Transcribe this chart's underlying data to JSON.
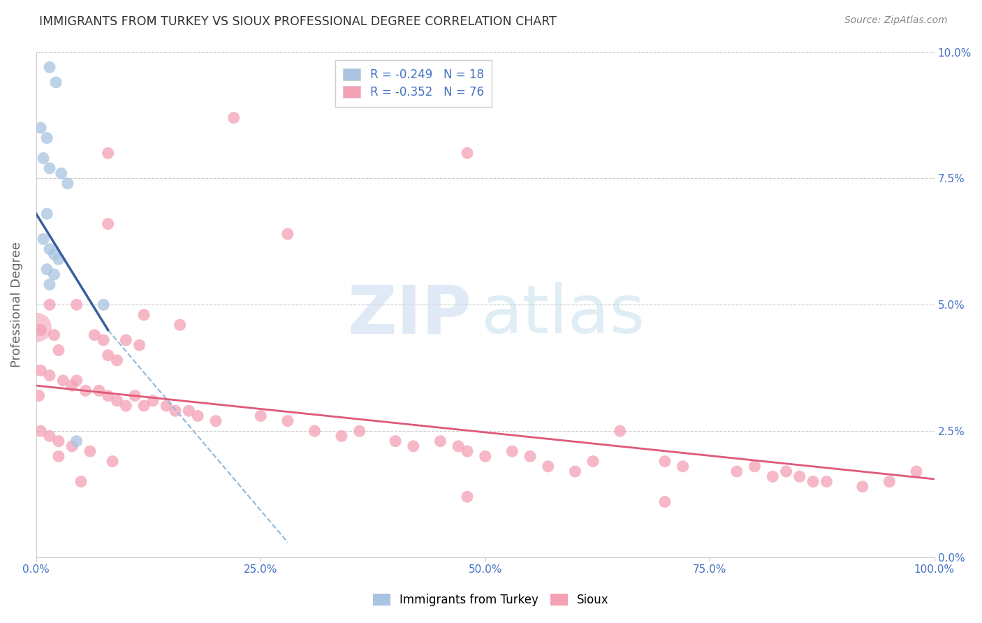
{
  "title": "IMMIGRANTS FROM TURKEY VS SIOUX PROFESSIONAL DEGREE CORRELATION CHART",
  "source": "Source: ZipAtlas.com",
  "ylabel": "Professional Degree",
  "legend_blue_r": "R = -0.249",
  "legend_blue_n": "N = 18",
  "legend_pink_r": "R = -0.352",
  "legend_pink_n": "N = 76",
  "legend_label_blue": "Immigrants from Turkey",
  "legend_label_pink": "Sioux",
  "xlim": [
    0.0,
    100.0
  ],
  "ylim": [
    0.0,
    10.0
  ],
  "yticks": [
    0.0,
    2.5,
    5.0,
    7.5,
    10.0
  ],
  "xticks": [
    0.0,
    25.0,
    50.0,
    75.0,
    100.0
  ],
  "blue_color": "#a8c4e0",
  "pink_color": "#f4a0b5",
  "blue_line_color": "#3a5fa0",
  "pink_line_color": "#e05878",
  "dashed_line_color": "#90b8d8",
  "blue_scatter": [
    [
      1.5,
      9.7
    ],
    [
      2.2,
      9.4
    ],
    [
      0.5,
      8.5
    ],
    [
      1.2,
      8.3
    ],
    [
      0.8,
      7.9
    ],
    [
      1.5,
      7.7
    ],
    [
      2.8,
      7.6
    ],
    [
      3.5,
      7.4
    ],
    [
      1.2,
      6.8
    ],
    [
      0.8,
      6.3
    ],
    [
      1.5,
      6.1
    ],
    [
      2.0,
      6.0
    ],
    [
      2.5,
      5.9
    ],
    [
      1.2,
      5.7
    ],
    [
      2.0,
      5.6
    ],
    [
      1.5,
      5.4
    ],
    [
      7.5,
      5.0
    ],
    [
      4.5,
      2.3
    ]
  ],
  "pink_scatter": [
    [
      22.0,
      8.7
    ],
    [
      8.0,
      8.0
    ],
    [
      48.0,
      8.0
    ],
    [
      8.0,
      6.6
    ],
    [
      28.0,
      6.4
    ],
    [
      1.5,
      5.0
    ],
    [
      4.5,
      5.0
    ],
    [
      12.0,
      4.8
    ],
    [
      16.0,
      4.6
    ],
    [
      0.5,
      4.5
    ],
    [
      2.0,
      4.4
    ],
    [
      6.5,
      4.4
    ],
    [
      7.5,
      4.3
    ],
    [
      10.0,
      4.3
    ],
    [
      11.5,
      4.2
    ],
    [
      2.5,
      4.1
    ],
    [
      8.0,
      4.0
    ],
    [
      9.0,
      3.9
    ],
    [
      0.5,
      3.7
    ],
    [
      1.5,
      3.6
    ],
    [
      3.0,
      3.5
    ],
    [
      4.0,
      3.4
    ],
    [
      4.5,
      3.5
    ],
    [
      5.5,
      3.3
    ],
    [
      7.0,
      3.3
    ],
    [
      8.0,
      3.2
    ],
    [
      9.0,
      3.1
    ],
    [
      10.0,
      3.0
    ],
    [
      11.0,
      3.2
    ],
    [
      12.0,
      3.0
    ],
    [
      13.0,
      3.1
    ],
    [
      14.5,
      3.0
    ],
    [
      15.5,
      2.9
    ],
    [
      17.0,
      2.9
    ],
    [
      18.0,
      2.8
    ],
    [
      20.0,
      2.7
    ],
    [
      25.0,
      2.8
    ],
    [
      28.0,
      2.7
    ],
    [
      31.0,
      2.5
    ],
    [
      34.0,
      2.4
    ],
    [
      36.0,
      2.5
    ],
    [
      40.0,
      2.3
    ],
    [
      42.0,
      2.2
    ],
    [
      45.0,
      2.3
    ],
    [
      47.0,
      2.2
    ],
    [
      48.0,
      2.1
    ],
    [
      50.0,
      2.0
    ],
    [
      53.0,
      2.1
    ],
    [
      55.0,
      2.0
    ],
    [
      57.0,
      1.8
    ],
    [
      60.0,
      1.7
    ],
    [
      62.0,
      1.9
    ],
    [
      65.0,
      2.5
    ],
    [
      70.0,
      1.9
    ],
    [
      72.0,
      1.8
    ],
    [
      78.0,
      1.7
    ],
    [
      80.0,
      1.8
    ],
    [
      82.0,
      1.6
    ],
    [
      83.5,
      1.7
    ],
    [
      85.0,
      1.6
    ],
    [
      86.5,
      1.5
    ],
    [
      88.0,
      1.5
    ],
    [
      92.0,
      1.4
    ],
    [
      95.0,
      1.5
    ],
    [
      98.0,
      1.7
    ],
    [
      0.5,
      2.5
    ],
    [
      1.5,
      2.4
    ],
    [
      2.5,
      2.3
    ],
    [
      4.0,
      2.2
    ],
    [
      6.0,
      2.1
    ],
    [
      8.5,
      1.9
    ],
    [
      0.3,
      3.2
    ],
    [
      2.5,
      2.0
    ],
    [
      5.0,
      1.5
    ],
    [
      48.0,
      1.2
    ],
    [
      70.0,
      1.1
    ]
  ],
  "blue_line": {
    "x0": 0.0,
    "y0": 6.8,
    "x1": 8.0,
    "y1": 4.5
  },
  "dashed_line": {
    "x0": 8.0,
    "y0": 4.5,
    "x1": 28.0,
    "y1": 0.3
  },
  "pink_line": {
    "x0": 0.0,
    "y0": 3.4,
    "x1": 100.0,
    "y1": 1.55
  }
}
